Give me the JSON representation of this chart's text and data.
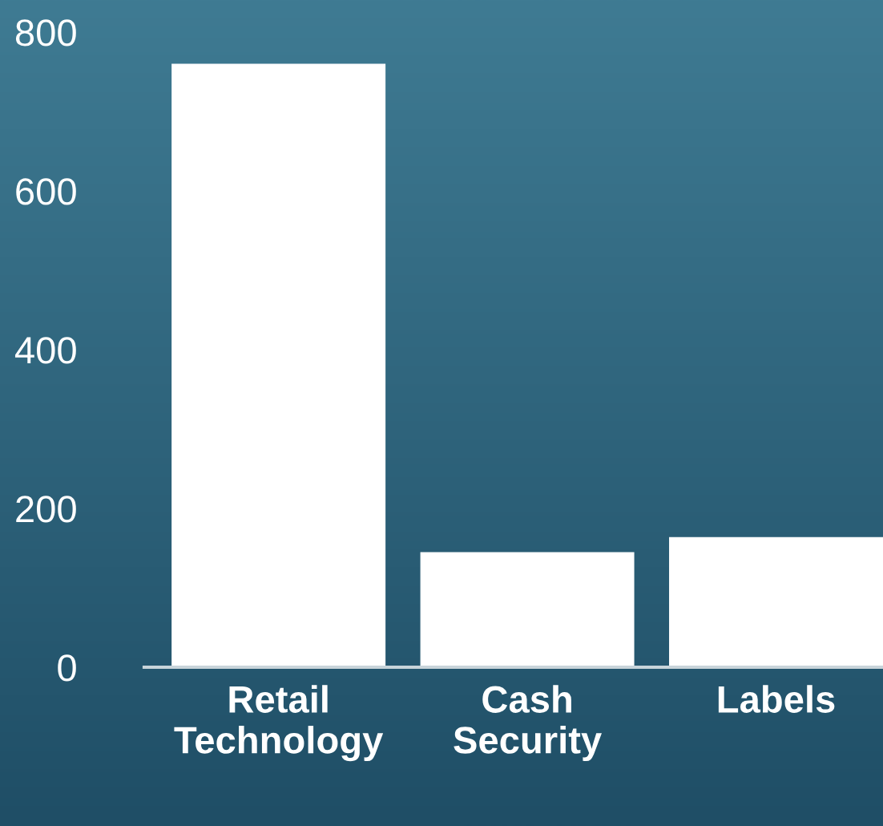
{
  "chart_data": {
    "type": "bar",
    "categories": [
      "Retail\nTechnology",
      "Cash\nSecurity",
      "Labels"
    ],
    "values": [
      760,
      145,
      164
    ],
    "color": "#ffffff",
    "ylim": [
      0,
      800
    ],
    "yticks": [
      0,
      200,
      400,
      600,
      800
    ],
    "grid": false,
    "legend": false
  }
}
